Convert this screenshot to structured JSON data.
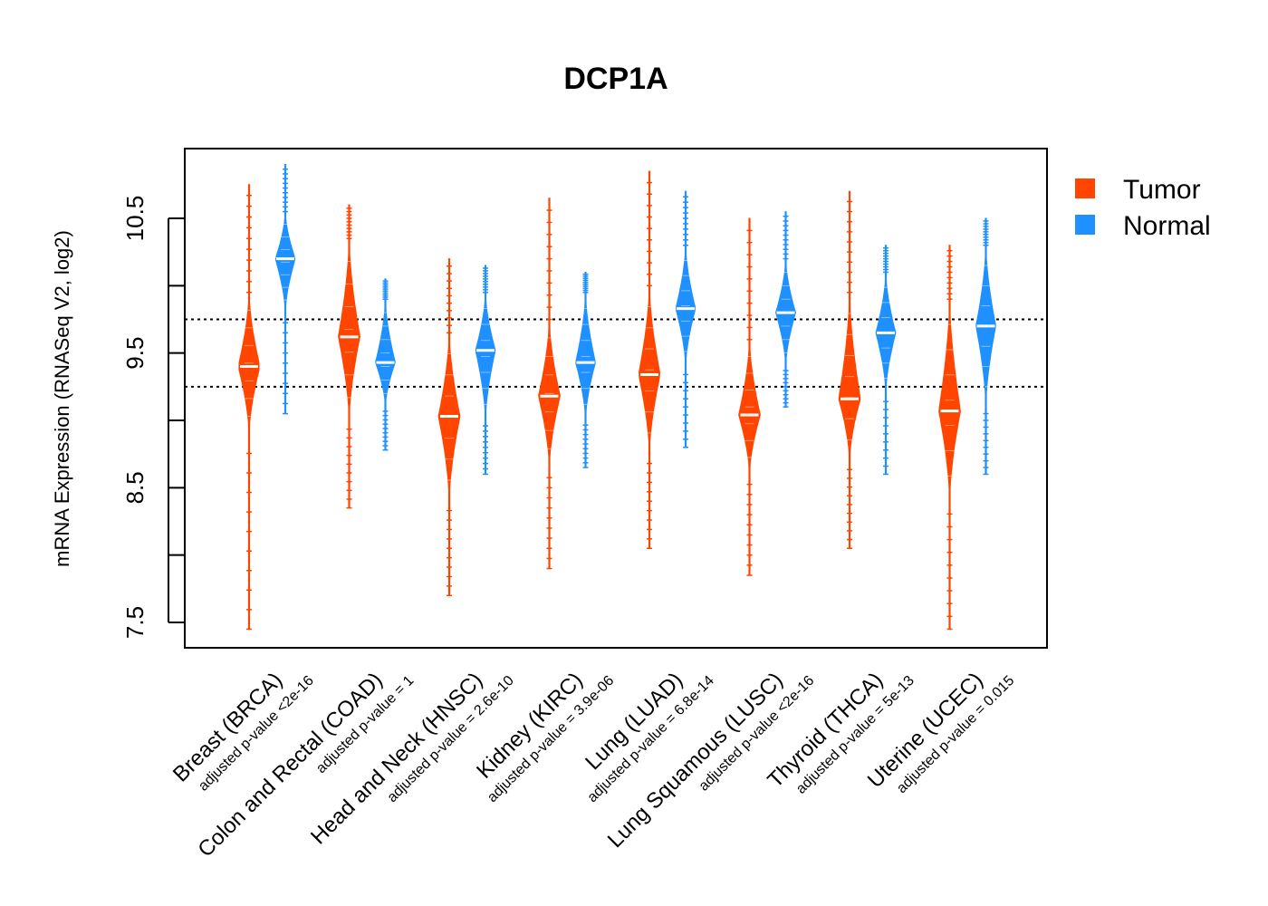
{
  "chart_data": {
    "type": "violin",
    "title": "DCP1A",
    "ylabel": "mRNA Expression (RNASeq V2, log2)",
    "xlabel": "",
    "ylim": [
      7.3,
      11.0
    ],
    "yticks": [
      7.5,
      8.0,
      8.5,
      9.0,
      9.5,
      10.0,
      10.5
    ],
    "ytick_labels": [
      "7.5",
      "",
      "8.5",
      "",
      "9.5",
      "",
      "10.5"
    ],
    "reference_lines": [
      9.25,
      9.75
    ],
    "legend": {
      "position": "top-right",
      "entries": [
        {
          "name": "Tumor",
          "color": "#FF4500"
        },
        {
          "name": "Normal",
          "color": "#1E90FF"
        }
      ]
    },
    "groups": [
      {
        "category": "Breast (BRCA)",
        "pvalue": "adjusted p-value <2e-16",
        "tumor": {
          "median": 9.4,
          "q1": 9.2,
          "q3": 9.6,
          "min": 7.45,
          "max": 10.75,
          "bulk_low": 8.9,
          "bulk_high": 9.95
        },
        "normal": {
          "median": 10.2,
          "q1": 10.0,
          "q3": 10.3,
          "min": 9.05,
          "max": 10.9,
          "bulk_low": 9.8,
          "bulk_high": 10.55
        }
      },
      {
        "category": "Colon and Rectal (COAD)",
        "pvalue": "adjusted p-value = 1",
        "tumor": {
          "median": 9.62,
          "q1": 9.4,
          "q3": 9.8,
          "min": 8.35,
          "max": 10.6,
          "bulk_low": 9.0,
          "bulk_high": 10.35
        },
        "normal": {
          "median": 9.43,
          "q1": 9.33,
          "q3": 9.53,
          "min": 8.78,
          "max": 10.05,
          "bulk_low": 9.1,
          "bulk_high": 9.9
        }
      },
      {
        "category": "Head and Neck (HNSC)",
        "pvalue": "adjusted p-value = 2.6e-10",
        "tumor": {
          "median": 9.03,
          "q1": 8.8,
          "q3": 9.25,
          "min": 7.7,
          "max": 10.2,
          "bulk_low": 8.4,
          "bulk_high": 9.65
        },
        "normal": {
          "median": 9.52,
          "q1": 9.4,
          "q3": 9.65,
          "min": 8.6,
          "max": 10.15,
          "bulk_low": 9.0,
          "bulk_high": 9.95
        }
      },
      {
        "category": "Kidney (KIRC)",
        "pvalue": "adjusted p-value = 3.9e-06",
        "tumor": {
          "median": 9.18,
          "q1": 9.0,
          "q3": 9.38,
          "min": 7.9,
          "max": 10.65,
          "bulk_low": 8.65,
          "bulk_high": 9.75
        },
        "normal": {
          "median": 9.43,
          "q1": 9.3,
          "q3": 9.55,
          "min": 8.65,
          "max": 10.1,
          "bulk_low": 9.0,
          "bulk_high": 9.95
        }
      },
      {
        "category": "Lung (LUAD)",
        "pvalue": "adjusted p-value = 6.8e-14",
        "tumor": {
          "median": 9.34,
          "q1": 9.1,
          "q3": 9.55,
          "min": 8.05,
          "max": 10.85,
          "bulk_low": 8.75,
          "bulk_high": 10.0
        },
        "normal": {
          "median": 9.83,
          "q1": 9.7,
          "q3": 9.95,
          "min": 8.8,
          "max": 10.7,
          "bulk_low": 9.4,
          "bulk_high": 10.3
        }
      },
      {
        "category": "Lung Squamous (LUSC)",
        "pvalue": "adjusted p-value <2e-16",
        "tumor": {
          "median": 9.04,
          "q1": 8.85,
          "q3": 9.2,
          "min": 7.85,
          "max": 10.5,
          "bulk_low": 8.6,
          "bulk_high": 9.6
        },
        "normal": {
          "median": 9.8,
          "q1": 9.7,
          "q3": 9.9,
          "min": 9.1,
          "max": 10.55,
          "bulk_low": 9.4,
          "bulk_high": 10.2
        }
      },
      {
        "category": "Thyroid (THCA)",
        "pvalue": "adjusted p-value = 5e-13",
        "tumor": {
          "median": 9.16,
          "q1": 9.0,
          "q3": 9.35,
          "min": 8.05,
          "max": 10.7,
          "bulk_low": 8.7,
          "bulk_high": 9.95
        },
        "normal": {
          "median": 9.65,
          "q1": 9.5,
          "q3": 9.8,
          "min": 8.6,
          "max": 10.3,
          "bulk_low": 9.2,
          "bulk_high": 10.1
        }
      },
      {
        "category": "Uterine (UCEC)",
        "pvalue": "adjusted p-value = 0.015",
        "tumor": {
          "median": 9.07,
          "q1": 8.85,
          "q3": 9.3,
          "min": 7.45,
          "max": 10.3,
          "bulk_low": 8.4,
          "bulk_high": 9.9
        },
        "normal": {
          "median": 9.7,
          "q1": 9.5,
          "q3": 9.9,
          "min": 8.6,
          "max": 10.5,
          "bulk_low": 9.1,
          "bulk_high": 10.3
        }
      }
    ]
  }
}
